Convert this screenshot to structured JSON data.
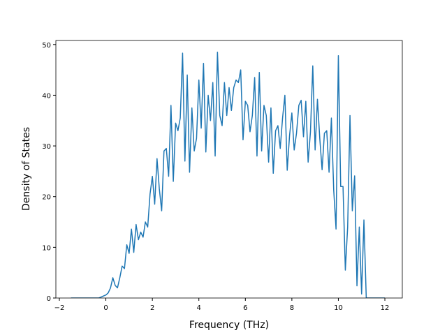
{
  "chart_data": {
    "type": "line",
    "xlabel": "Frequency (THz)",
    "ylabel": "Density of States",
    "x": [
      -1.5,
      -1.4,
      -1.3,
      -1.2,
      -1.1,
      -1.0,
      -0.9,
      -0.8,
      -0.7,
      -0.6,
      -0.5,
      -0.4,
      -0.3,
      -0.2,
      -0.1,
      0.0,
      0.1,
      0.2,
      0.3,
      0.4,
      0.5,
      0.6,
      0.7,
      0.8,
      0.9,
      1.0,
      1.1,
      1.2,
      1.3,
      1.4,
      1.5,
      1.6,
      1.7,
      1.8,
      1.9,
      2.0,
      2.1,
      2.2,
      2.3,
      2.4,
      2.5,
      2.6,
      2.7,
      2.8,
      2.9,
      3.0,
      3.1,
      3.2,
      3.3,
      3.4,
      3.5,
      3.6,
      3.7,
      3.8,
      3.9,
      4.0,
      4.1,
      4.2,
      4.3,
      4.4,
      4.5,
      4.6,
      4.7,
      4.8,
      4.9,
      5.0,
      5.1,
      5.2,
      5.3,
      5.4,
      5.5,
      5.6,
      5.7,
      5.8,
      5.9,
      6.0,
      6.1,
      6.2,
      6.3,
      6.4,
      6.5,
      6.6,
      6.7,
      6.8,
      6.9,
      7.0,
      7.1,
      7.2,
      7.3,
      7.4,
      7.5,
      7.6,
      7.7,
      7.8,
      7.9,
      8.0,
      8.1,
      8.2,
      8.3,
      8.4,
      8.5,
      8.6,
      8.7,
      8.8,
      8.9,
      9.0,
      9.1,
      9.2,
      9.3,
      9.4,
      9.5,
      9.6,
      9.7,
      9.8,
      9.9,
      10.0,
      10.1,
      10.2,
      10.3,
      10.4,
      10.5,
      10.6,
      10.7,
      10.8,
      10.9,
      11.0,
      11.1,
      11.2,
      11.3,
      11.4,
      11.5,
      11.6,
      11.7,
      11.8,
      11.9,
      12.0
    ],
    "series": [
      {
        "color": "#1f77b4",
        "values": [
          0,
          0,
          0,
          0,
          0,
          0,
          0,
          0,
          0,
          0,
          0,
          0,
          0,
          0.2,
          0.4,
          0.6,
          1.0,
          2.0,
          4.0,
          2.5,
          2.0,
          4.0,
          6.3,
          5.8,
          10.5,
          8.8,
          13.6,
          9.0,
          14.5,
          11.5,
          13.0,
          12.0,
          15.0,
          14.0,
          20.5,
          24,
          18.5,
          27.5,
          21.5,
          17.2,
          29,
          29.5,
          24,
          38,
          23,
          34.5,
          33,
          35.5,
          48.3,
          27,
          44,
          24.8,
          37.5,
          29,
          31.5,
          43,
          33.5,
          46.3,
          28.8,
          40,
          35,
          42.5,
          28,
          48.5,
          36,
          34,
          42.5,
          36,
          41.5,
          37,
          41.5,
          43,
          42.5,
          45,
          31.2,
          38.8,
          38,
          32.8,
          36,
          43.5,
          28,
          44.5,
          29,
          38,
          36,
          26.8,
          37.5,
          24.6,
          33,
          34,
          29.5,
          35.5,
          40,
          25.2,
          32,
          36.5,
          29.2,
          32.5,
          38,
          39,
          31.8,
          38.8,
          26.8,
          32.8,
          45.8,
          29.2,
          39.2,
          31.5,
          25.3,
          32.5,
          33,
          24.8,
          35.5,
          21.3,
          13.6,
          47.8,
          22,
          22,
          5.5,
          14,
          36,
          17.2,
          24.1,
          2.4,
          14,
          0.8,
          15.4,
          0,
          0,
          0,
          0,
          0,
          0,
          0,
          0,
          0
        ]
      }
    ],
    "xlim": [
      -2.15,
      12.75
    ],
    "ylim": [
      0,
      50.8
    ],
    "xticks": [
      {
        "value": -2,
        "label": "−2"
      },
      0,
      2,
      4,
      6,
      8,
      10,
      12
    ],
    "yticks": [
      0,
      10,
      20,
      30,
      40,
      50
    ]
  }
}
